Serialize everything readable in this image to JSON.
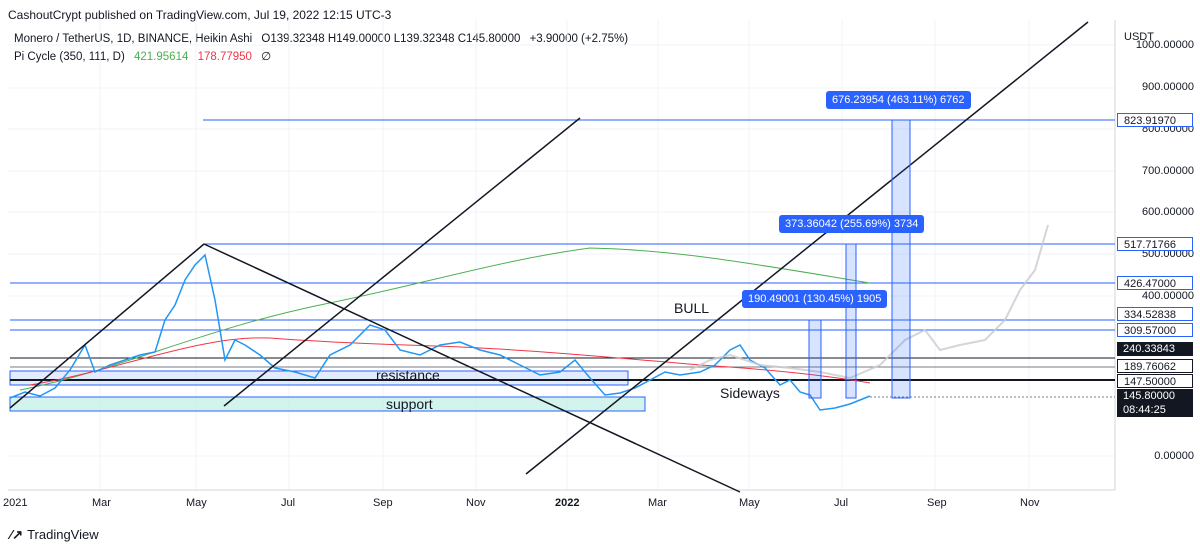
{
  "header": {
    "publisher_line": "CashoutCrypt published on TradingView.com, Jul 19, 2022 12:15 UTC-3"
  },
  "legend": {
    "symbol": "Monero / TetherUS, 1D, BINANCE, Heikin Ashi",
    "ohlc": "O139.32348 H149.00000 L139.32348 C145.80000",
    "change": "+3.90000 (+2.75%)",
    "indicator": "Pi Cycle (350, 111, D)",
    "ind_val1": "421.95614",
    "ind_val2": "178.77950",
    "ind_val3": "∅",
    "colors": {
      "ind_val1": "#4caf50",
      "ind_val2": "#f23645",
      "change": "#089981"
    }
  },
  "price_axis": {
    "unit": "USDT",
    "ticks": [
      "1000.00000",
      "900.00000",
      "800.00000",
      "700.00000",
      "600.00000",
      "500.00000",
      "400.00000",
      "0.00000"
    ],
    "tags": [
      {
        "label": "823.91970",
        "style": "blue"
      },
      {
        "label": "517.71766",
        "style": "blue"
      },
      {
        "label": "426.47000",
        "style": "blue"
      },
      {
        "label": "334.52838",
        "style": "blue"
      },
      {
        "label": "309.57000",
        "style": "blue"
      },
      {
        "label": "240.33843",
        "style": "black"
      },
      {
        "label": "189.76062",
        "style": "white"
      },
      {
        "label": "147.50000",
        "style": "black"
      },
      {
        "label": "145.80000",
        "style": "black"
      },
      {
        "label": "08:44:25",
        "style": "black"
      }
    ]
  },
  "time_axis": {
    "labels": [
      "2021",
      "Mar",
      "May",
      "Jul",
      "Sep",
      "Nov",
      "2022",
      "Mar",
      "May",
      "Jul",
      "Sep",
      "Nov"
    ]
  },
  "annotations": {
    "resistance": "resistance",
    "support": "support",
    "bull": "BULL",
    "sideways": "Sideways",
    "measure1": "190.49001 (130.45%) 1905",
    "measure2": "373.36042 (255.69%) 3734",
    "measure3": "676.23954 (463.11%) 6762"
  },
  "footer": {
    "brand": "TradingView"
  },
  "chart_data": {
    "type": "line",
    "title": "Monero / TetherUS, 1D, BINANCE, Heikin Ashi",
    "xlabel": "",
    "ylabel": "USDT",
    "x": [
      "2021-01",
      "2021-02",
      "2021-03",
      "2021-04",
      "2021-05",
      "2021-06",
      "2021-07",
      "2021-08",
      "2021-09",
      "2021-10",
      "2021-11",
      "2021-12",
      "2022-01",
      "2022-02",
      "2022-03",
      "2022-04",
      "2022-05",
      "2022-06",
      "2022-07"
    ],
    "series": [
      {
        "name": "",
        "values": [
          140,
          210,
          240,
          320,
          500,
          250,
          220,
          240,
          300,
          250,
          260,
          230,
          210,
          150,
          170,
          250,
          180,
          120,
          145.8
        ]
      }
    ],
    "horizontal_levels": [
      823.9197,
      517.71766,
      426.47,
      334.52838,
      309.57,
      240.33843,
      189.76062,
      147.5,
      145.8
    ],
    "ylim": [
      0,
      1000
    ]
  }
}
